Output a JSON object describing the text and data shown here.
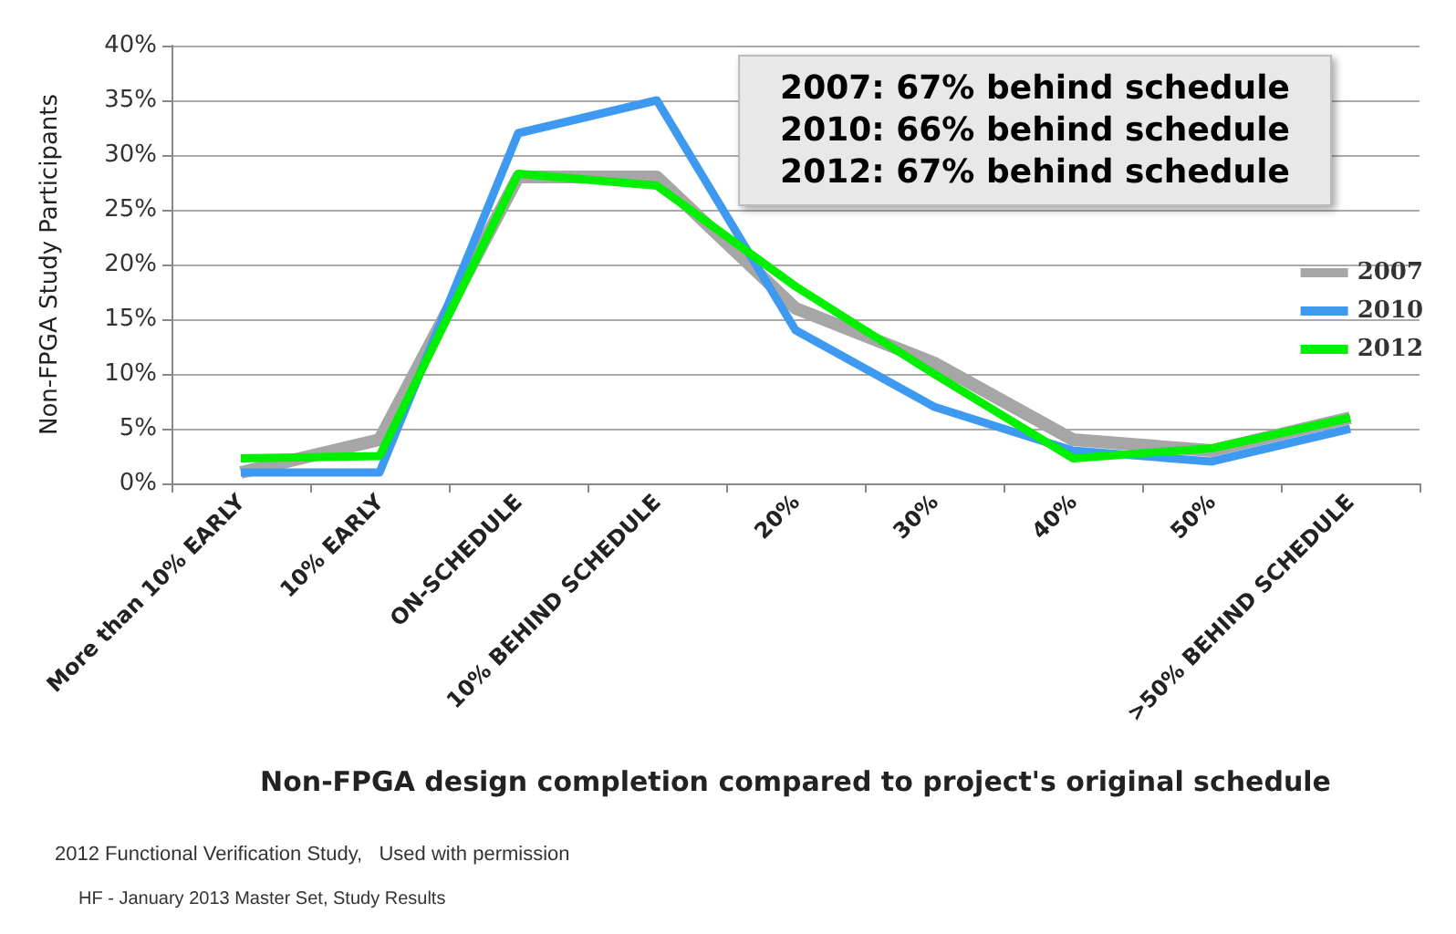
{
  "chart_data": {
    "type": "line",
    "xlabel": "Non-FPGA design completion compared to project's original schedule",
    "ylabel": "Non-FPGA Study Participants",
    "categories": [
      "More than 10% EARLY",
      "10% EARLY",
      "ON-SCHEDULE",
      "10% BEHIND SCHEDULE",
      "20%",
      "30%",
      "40%",
      "50%",
      ">50% BEHIND SCHEDULE"
    ],
    "series": [
      {
        "name": "2007",
        "color": "#a6a6a6",
        "values": [
          1,
          4,
          28,
          28,
          16,
          11,
          4,
          3,
          6
        ]
      },
      {
        "name": "2010",
        "color": "#3d9af0",
        "values": [
          1,
          1,
          32,
          35,
          14,
          7,
          3,
          2,
          5
        ]
      },
      {
        "name": "2012",
        "color": "#00f000",
        "values": [
          2.3,
          2.5,
          28.3,
          27.2,
          18,
          10,
          2.3,
          3.2,
          6
        ]
      }
    ],
    "ylim": [
      0,
      40
    ],
    "yticks": [
      {
        "value": 0,
        "label": "0%"
      },
      {
        "value": 5,
        "label": "5%"
      },
      {
        "value": 10,
        "label": "10%"
      },
      {
        "value": 15,
        "label": "15%"
      },
      {
        "value": 20,
        "label": "20%"
      },
      {
        "value": 25,
        "label": "25%"
      },
      {
        "value": 30,
        "label": "30%"
      },
      {
        "value": 35,
        "label": "35%"
      },
      {
        "value": 40,
        "label": "40%"
      }
    ],
    "grid": "y",
    "legend": "right",
    "marker": "none",
    "annotations": [
      "2007: 67% behind schedule\n2010: 66% behind schedule\n2012: 67% behind schedule",
      "2012 Functional Verification Study,   Used with permission",
      "HF - January 2013 Master Set, Study Results"
    ]
  }
}
